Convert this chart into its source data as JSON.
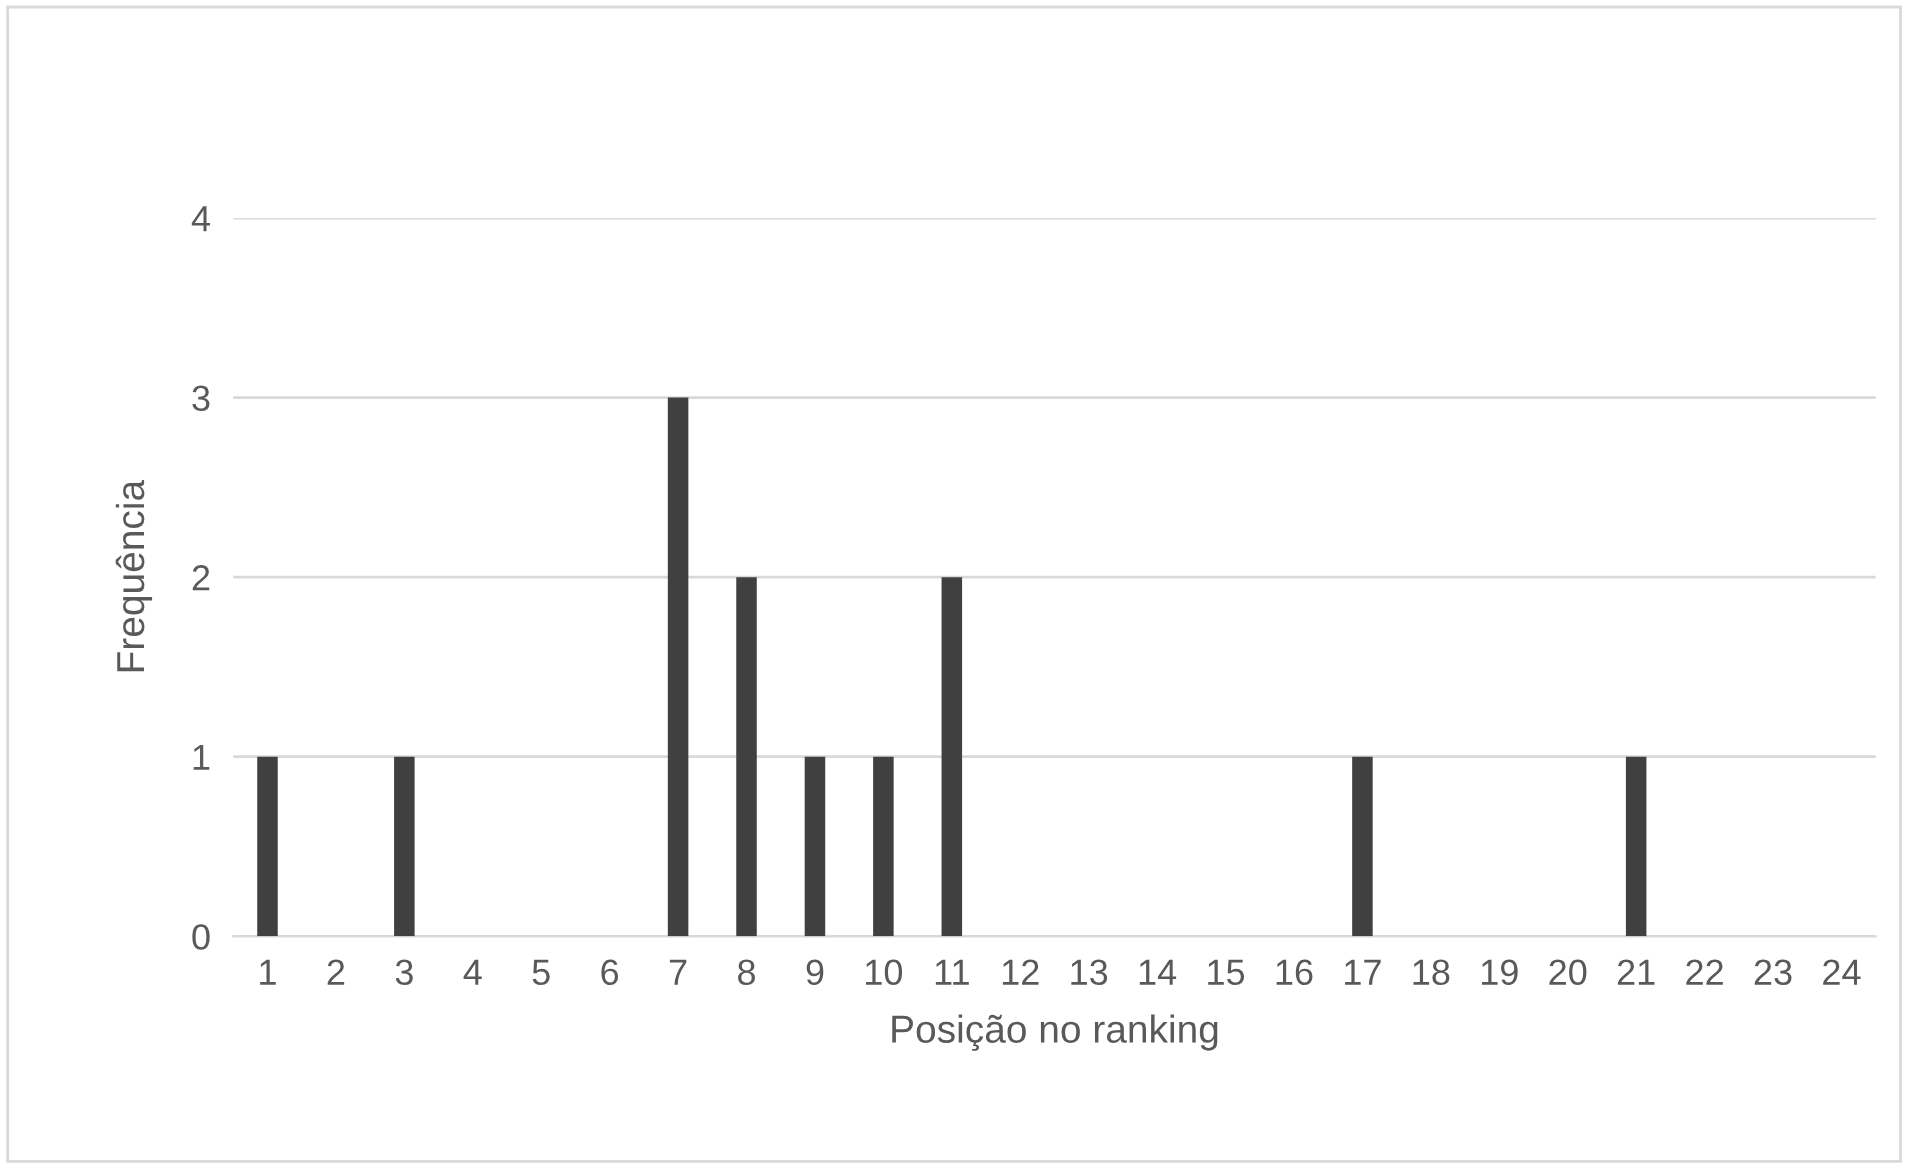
{
  "chart_data": {
    "type": "bar",
    "xlabel": "Posição no ranking",
    "ylabel": "Frequência",
    "categories": [
      "1",
      "2",
      "3",
      "4",
      "5",
      "6",
      "7",
      "8",
      "9",
      "10",
      "11",
      "12",
      "13",
      "14",
      "15",
      "16",
      "17",
      "18",
      "19",
      "20",
      "21",
      "22",
      "23",
      "24"
    ],
    "values": [
      1,
      0,
      1,
      0,
      0,
      0,
      3,
      2,
      1,
      1,
      2,
      0,
      0,
      0,
      0,
      0,
      1,
      0,
      0,
      0,
      1,
      0,
      0,
      0
    ],
    "color": "#404040",
    "ylim": [
      0,
      4
    ],
    "yticks": [
      0,
      1,
      2,
      3,
      4
    ],
    "grid": "y",
    "legend": false
  }
}
